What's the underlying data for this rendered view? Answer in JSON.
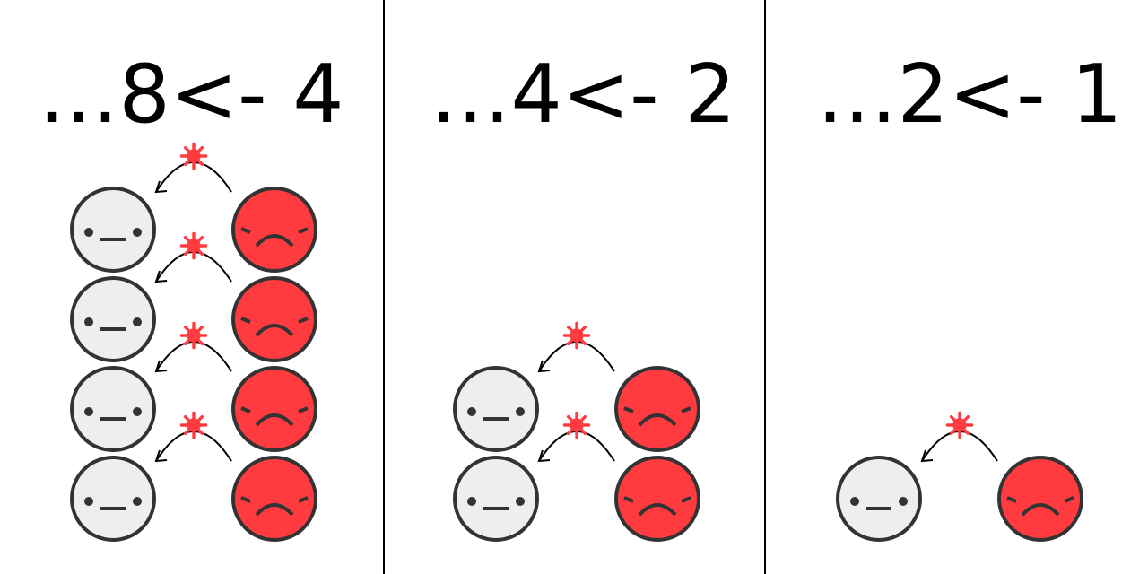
{
  "panels": [
    {
      "title": "…8<- 4",
      "pairs": 4
    },
    {
      "title": "…4<- 2",
      "pairs": 2
    },
    {
      "title": "…2<- 1",
      "pairs": 1
    }
  ],
  "colors": {
    "healthy_face": "#eeeeee",
    "sick_face": "#ff3b3f",
    "outline": "#333333",
    "virus": "#ff3b3f",
    "divider": "#000000"
  },
  "icons": {
    "healthy": "neutral-face-icon",
    "sick": "sad-face-icon",
    "virus": "virus-icon",
    "transmission": "curved-arrow-icon"
  }
}
